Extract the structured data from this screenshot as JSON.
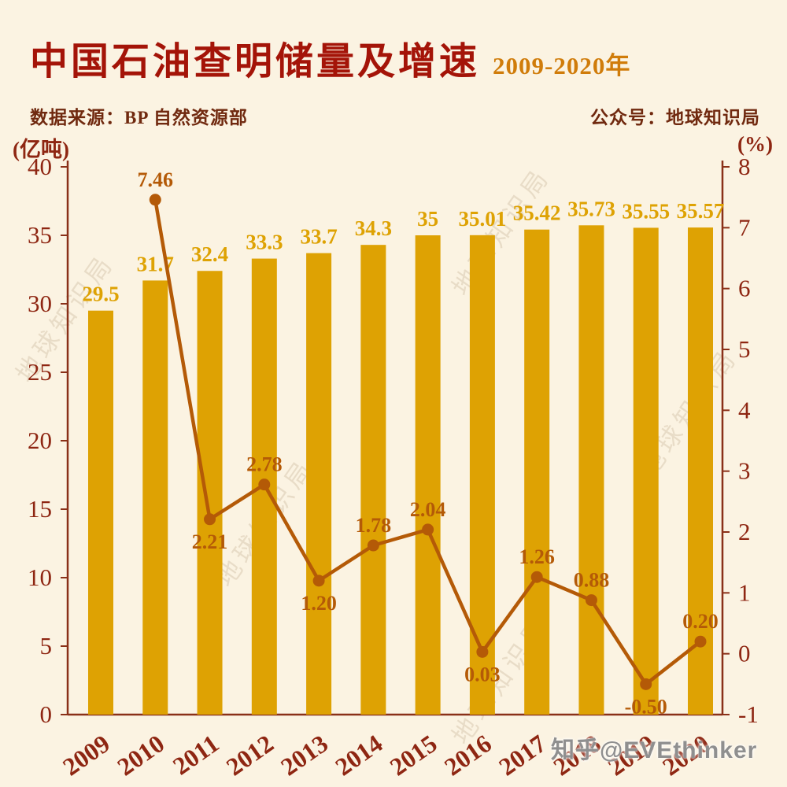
{
  "header": {
    "title": "中国石油查明储量及增速",
    "title_suffix": "2009-2020年",
    "source": "数据来源：BP 自然资源部",
    "account": "公众号：地球知识局"
  },
  "watermark": "地球知识局",
  "credit": "知乎@EVEthinker",
  "chart_data": {
    "type": "bar",
    "title": "中国石油查明储量及增速",
    "subtitle": "2009-2020年",
    "categories": [
      "2009",
      "2010",
      "2011",
      "2012",
      "2013",
      "2014",
      "2015",
      "2016",
      "2017",
      "2018",
      "2019",
      "2020"
    ],
    "series": [
      {
        "name": "石油查明储量",
        "type": "bar",
        "axis": "left",
        "color": "#dea203",
        "values": [
          29.5,
          31.7,
          32.4,
          33.3,
          33.7,
          34.3,
          35,
          35.01,
          35.42,
          35.73,
          35.55,
          35.57
        ],
        "labels": [
          "29.5",
          "31.7",
          "32.4",
          "33.3",
          "33.7",
          "34.3",
          "35",
          "35.01",
          "35.42",
          "35.73",
          "35.55",
          "35.57"
        ]
      },
      {
        "name": "增速",
        "type": "line",
        "axis": "right",
        "color": "#b45a07",
        "values": [
          null,
          7.46,
          2.21,
          2.78,
          1.2,
          1.78,
          2.04,
          0.03,
          1.26,
          0.88,
          -0.5,
          0.2
        ],
        "labels": [
          null,
          "7.46",
          "2.21",
          "2.78",
          "1.20",
          "1.78",
          "2.04",
          "0.03",
          "1.26",
          "0.88",
          "-0.50",
          "0.20"
        ],
        "label_positions": [
          null,
          "above",
          "below",
          "above",
          "below",
          "above",
          "above",
          "below",
          "above",
          "above",
          "below",
          "above"
        ]
      }
    ],
    "left_axis": {
      "label": "(亿吨)",
      "min": 0,
      "max": 40,
      "step": 5,
      "ticks": [
        "0",
        "5",
        "10",
        "15",
        "20",
        "25",
        "30",
        "35",
        "40"
      ]
    },
    "right_axis": {
      "label": "(%)",
      "min": -1,
      "max": 8,
      "step": 1,
      "ticks": [
        "-1",
        "0",
        "1",
        "2",
        "3",
        "4",
        "5",
        "6",
        "7",
        "8"
      ]
    },
    "grid": false,
    "legend": "none",
    "colors": {
      "background": "#fbf3e2",
      "bar": "#dea203",
      "line": "#b45a07",
      "axis": "#8a3018",
      "tick_text": "#8e2612",
      "title": "#a41408",
      "title_suffix": "#d07c0a",
      "subtitle": "#70290f"
    }
  }
}
